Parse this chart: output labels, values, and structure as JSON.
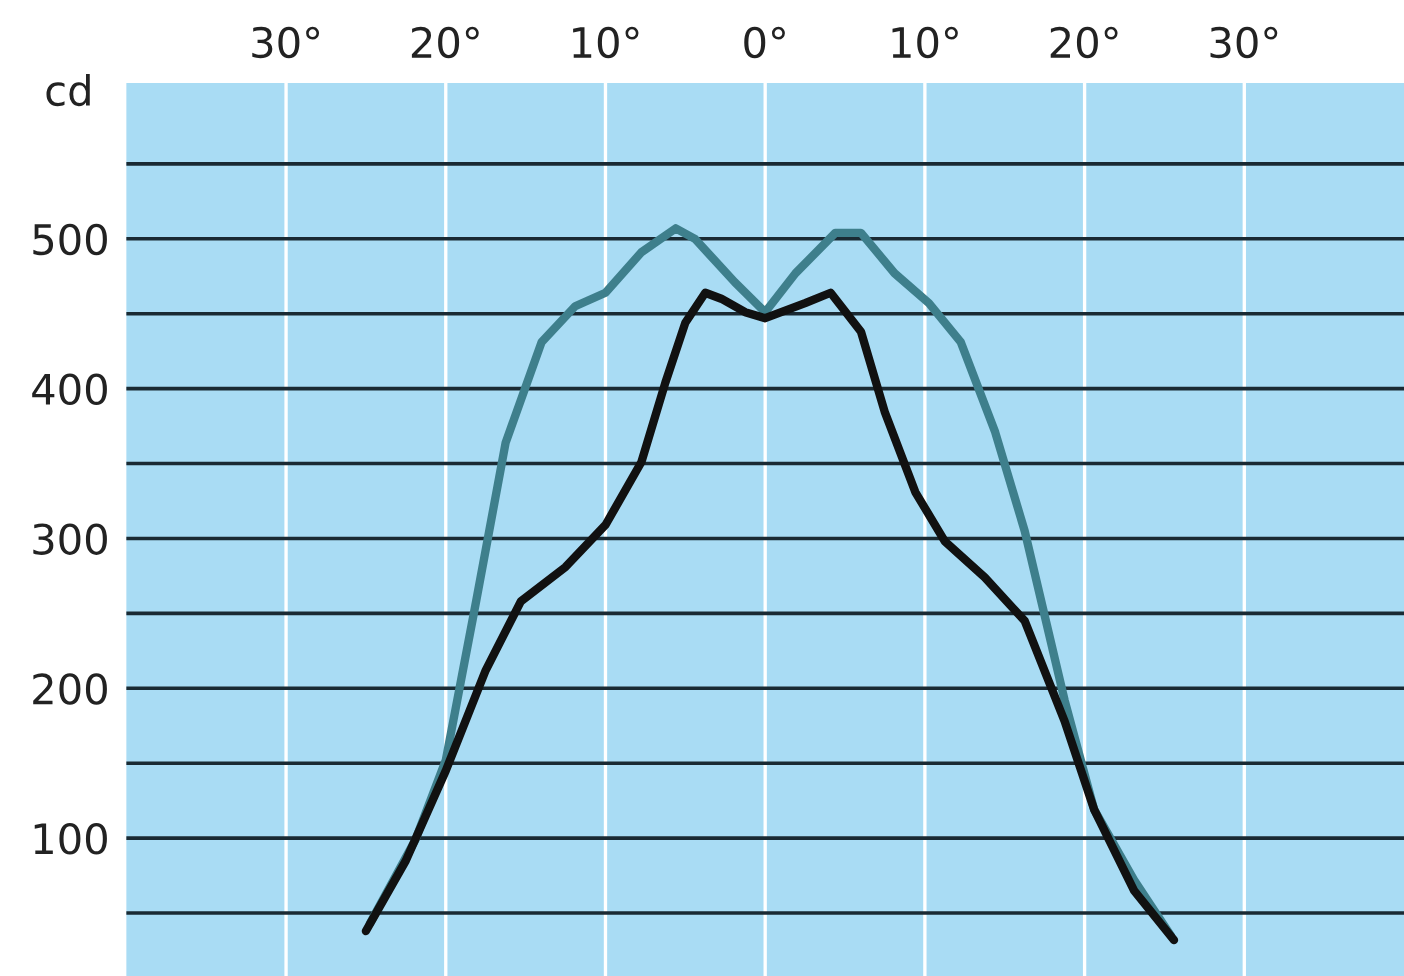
{
  "chart_data": {
    "type": "line",
    "ylabel": "cd",
    "xlim": [
      -40,
      40
    ],
    "xticks": [
      {
        "value": -30,
        "label": "30°"
      },
      {
        "value": -20,
        "label": "20°"
      },
      {
        "value": -10,
        "label": "10°"
      },
      {
        "value": 0,
        "label": "0°"
      },
      {
        "value": 10,
        "label": "10°"
      },
      {
        "value": 20,
        "label": "20°"
      },
      {
        "value": 30,
        "label": "30°"
      }
    ],
    "ylim": [
      8,
      604
    ],
    "yticks": [
      {
        "value": 50,
        "label": null
      },
      100,
      {
        "value": 150,
        "label": null
      },
      200,
      {
        "value": 250,
        "label": null
      },
      300,
      {
        "value": 350,
        "label": null
      },
      400,
      {
        "value": 450,
        "label": null
      },
      500,
      {
        "value": 550,
        "label": null
      }
    ],
    "grid": true,
    "line_style": "solid",
    "marker": "none",
    "series": [
      {
        "color": "#3e7f8c",
        "x": [
          -24.75,
          -21.9,
          -20,
          -18.1,
          -16.25,
          -14,
          -11.9,
          -10,
          -7.75,
          -5.6,
          -4.4,
          -1.9,
          0,
          1.9,
          4.4,
          6,
          8.1,
          10.25,
          12.25,
          14.4,
          16.25,
          18.75,
          20.6,
          23.1,
          25.4
        ],
        "values": [
          43,
          99,
          152,
          258,
          364,
          431,
          455,
          464,
          491,
          507,
          500,
          471,
          451,
          477,
          504,
          504,
          477,
          457,
          431,
          371,
          305,
          192,
          119,
          72,
          35
        ]
      },
      {
        "color": "#111111",
        "x": [
          -25,
          -22.5,
          -20,
          -17.5,
          -15.3,
          -12.5,
          -10,
          -7.75,
          -6.25,
          -5,
          -3.75,
          -2.75,
          -1.25,
          0,
          2.5,
          4.1,
          6,
          7.5,
          9.4,
          11.25,
          13.75,
          16.25,
          18.75,
          20.6,
          23.1,
          25.6
        ],
        "values": [
          38,
          85,
          145,
          212,
          258,
          281,
          309,
          351,
          404,
          444,
          464,
          460,
          451,
          447,
          457,
          464,
          438,
          384,
          331,
          298,
          274,
          245,
          178,
          119,
          65,
          32
        ]
      }
    ]
  }
}
